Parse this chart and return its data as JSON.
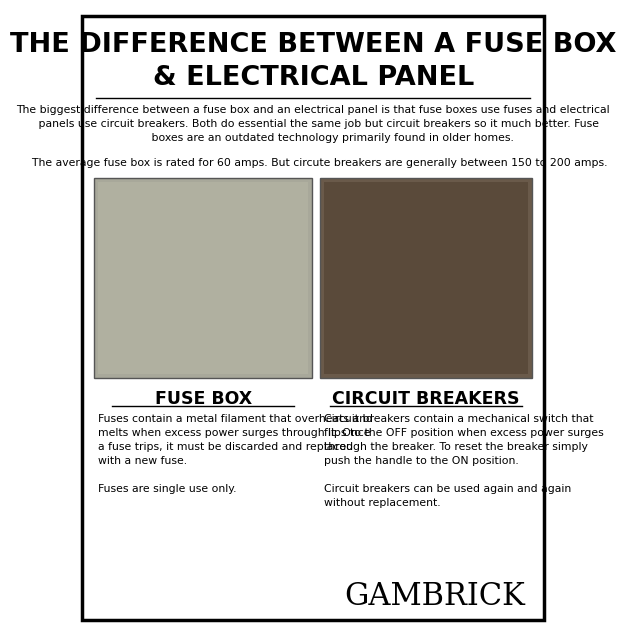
{
  "bg_color": "#ffffff",
  "border_color": "#000000",
  "title_line1": "THE DIFFERENCE BETWEEN A FUSE BOX",
  "title_line2": "& ELECTRICAL PANEL",
  "intro_text": "The biggest difference between a fuse box and an electrical panel is that fuse boxes use fuses and electrical\n   panels use circuit breakers. Both do essential the same job but circuit breakers so it much better. Fuse\n           boxes are an outdated technology primarily found in older homes.",
  "avg_text": "    The average fuse box is rated for 60 amps. But circute breakers are generally between 150 to 200 amps.",
  "left_label": "FUSE BOX",
  "right_label": "CIRCUIT BREAKERS",
  "left_desc": "Fuses contain a metal filament that overheats and\nmelts when excess power surges through it. Once\na fuse trips, it must be discarded and replaced\nwith a new fuse.\n\nFuses are single use only.",
  "right_desc": "Circuit breakers contain a mechanical switch that\nflips to the OFF position when excess power surges\nthrough the breaker. To reset the breaker simply\npush the handle to the ON position.\n\nCircuit breakers can be used again and again\nwithout replacement.",
  "brand": "GAMBRICK",
  "title_fontsize": 19.5,
  "label_fontsize": 12.5,
  "body_fontsize": 7.8,
  "brand_fontsize": 22,
  "left_img_color": "#a8a89a",
  "right_img_color": "#6a5a4a"
}
